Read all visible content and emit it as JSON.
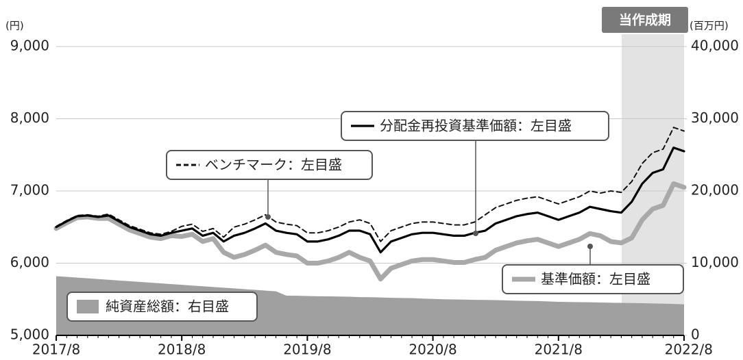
{
  "chart_data": {
    "type": "line",
    "y_label": "(円)",
    "y2_label": "(百万円)",
    "annotation": "当作成期",
    "categories": [
      "2017/8",
      null,
      null,
      null,
      null,
      null,
      null,
      null,
      null,
      null,
      null,
      null,
      "2018/8",
      null,
      null,
      null,
      null,
      null,
      null,
      null,
      null,
      null,
      null,
      null,
      "2019/8",
      null,
      null,
      null,
      null,
      null,
      null,
      null,
      null,
      null,
      null,
      null,
      "2020/8",
      null,
      null,
      null,
      null,
      null,
      null,
      null,
      null,
      null,
      null,
      null,
      "2021/8",
      null,
      null,
      null,
      null,
      null,
      null,
      null,
      null,
      null,
      null,
      null,
      "2022/8"
    ],
    "ylim": [
      5000,
      9000
    ],
    "yticks": [
      {
        "value": 5000,
        "label": "5,000"
      },
      {
        "value": 6000,
        "label": "6,000"
      },
      {
        "value": 7000,
        "label": "7,000"
      },
      {
        "value": 8000,
        "label": "8,000"
      },
      {
        "value": 9000,
        "label": "9,000"
      }
    ],
    "y2lim": [
      0,
      40000
    ],
    "y2ticks": [
      0,
      {
        "value": 10000,
        "label": "10,000"
      },
      {
        "value": 20000,
        "label": "20,000"
      },
      {
        "value": 30000,
        "label": "30,000"
      },
      {
        "value": 40000,
        "label": "40,000"
      }
    ],
    "grid": true,
    "series": [
      {
        "name": "純資産総額：右目盛",
        "type": "area",
        "axis": "y2",
        "color": "#a0a0a0",
        "values": [
          8200,
          8100,
          8000,
          7900,
          7800,
          7700,
          7600,
          7500,
          7400,
          7300,
          7200,
          7100,
          7000,
          6900,
          6800,
          6700,
          6600,
          6500,
          6400,
          6300,
          6200,
          6100,
          5500,
          5480,
          5450,
          5420,
          5400,
          5380,
          5350,
          5300,
          5280,
          5250,
          5200,
          5180,
          5150,
          5100,
          5050,
          5000,
          4980,
          4950,
          4920,
          4900,
          4880,
          4850,
          4800,
          4780,
          4750,
          4700,
          4650,
          4620,
          4600,
          4580,
          4550,
          4520,
          4500,
          4480,
          4450,
          4420,
          4400,
          4350,
          4300
        ]
      },
      {
        "name": "基準価額：左目盛",
        "type": "line",
        "style": "solid",
        "color": "#a9a9a9",
        "values": [
          6480,
          6560,
          6630,
          6640,
          6620,
          6620,
          6540,
          6460,
          6410,
          6360,
          6340,
          6380,
          6370,
          6400,
          6300,
          6340,
          6150,
          6080,
          6120,
          6180,
          6250,
          6150,
          6120,
          6100,
          6000,
          6000,
          6030,
          6080,
          6150,
          6080,
          6030,
          5780,
          5930,
          5980,
          6030,
          6050,
          6050,
          6030,
          6010,
          6010,
          6050,
          6080,
          6180,
          6230,
          6280,
          6310,
          6330,
          6280,
          6230,
          6280,
          6330,
          6410,
          6380,
          6300,
          6280,
          6350,
          6600,
          6750,
          6800,
          7100,
          7050
        ]
      },
      {
        "name": "ベンチマーク：左目盛",
        "type": "line",
        "style": "dashed",
        "color": "#111111",
        "values": [
          6510,
          6590,
          6660,
          6670,
          6650,
          6680,
          6600,
          6520,
          6470,
          6420,
          6400,
          6440,
          6510,
          6540,
          6440,
          6480,
          6360,
          6500,
          6540,
          6600,
          6670,
          6570,
          6540,
          6520,
          6420,
          6420,
          6450,
          6500,
          6570,
          6600,
          6550,
          6300,
          6450,
          6500,
          6550,
          6570,
          6570,
          6550,
          6530,
          6530,
          6570,
          6670,
          6770,
          6820,
          6870,
          6900,
          6920,
          6870,
          6820,
          6870,
          6920,
          7000,
          6970,
          7000,
          6980,
          7130,
          7380,
          7530,
          7580,
          7880,
          7830
        ]
      },
      {
        "name": "分配金再投資基準価額：左目盛",
        "type": "line",
        "style": "solid",
        "color": "#000000",
        "values": [
          6500,
          6580,
          6650,
          6660,
          6640,
          6660,
          6580,
          6500,
          6450,
          6400,
          6380,
          6420,
          6450,
          6480,
          6380,
          6420,
          6300,
          6380,
          6420,
          6480,
          6550,
          6450,
          6420,
          6400,
          6300,
          6300,
          6330,
          6380,
          6450,
          6450,
          6400,
          6150,
          6300,
          6350,
          6400,
          6420,
          6420,
          6400,
          6380,
          6380,
          6420,
          6450,
          6550,
          6600,
          6650,
          6680,
          6700,
          6650,
          6600,
          6650,
          6700,
          6780,
          6750,
          6720,
          6700,
          6850,
          7100,
          7250,
          7300,
          7600,
          7550
        ]
      }
    ]
  }
}
